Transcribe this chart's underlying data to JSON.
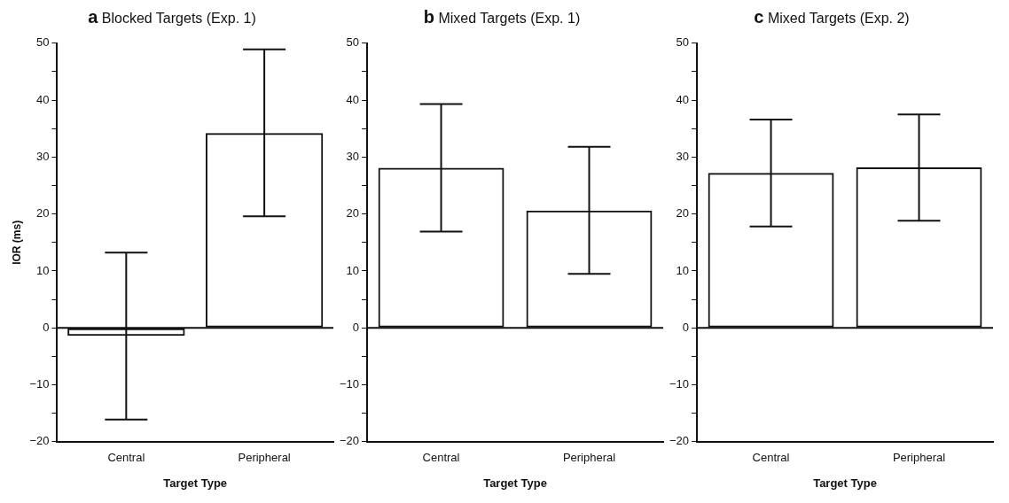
{
  "chart_data": [
    {
      "type": "bar",
      "title": "a Blocked Targets (Exp. 1)",
      "xlabel": "Target Type",
      "ylabel": "IOR (ms)",
      "categories": [
        "Central",
        "Peripheral"
      ],
      "values": [
        -1.4,
        34.2
      ],
      "errors": [
        [
          -16.1,
          13.2
        ],
        [
          19.6,
          48.9
        ]
      ],
      "color": "#111111",
      "ylim": [
        -20,
        50
      ],
      "yticks": [
        -20,
        {
          "value": -15,
          "label": null
        },
        -10,
        {
          "value": -5,
          "label": null
        },
        0,
        {
          "value": 5,
          "label": null
        },
        10,
        {
          "value": 15,
          "label": null
        },
        20,
        {
          "value": 25,
          "label": null
        },
        30,
        {
          "value": 35,
          "label": null
        },
        40,
        {
          "value": 45,
          "label": null
        },
        50
      ],
      "ref_lines": [
        {
          "axis": "y",
          "value": 0,
          "label": null
        }
      ]
    },
    {
      "type": "bar",
      "title": "b Mixed Targets (Exp. 1)",
      "xlabel": "Target Type",
      "categories": [
        "Central",
        "Peripheral"
      ],
      "values": [
        28.1,
        20.6
      ],
      "errors": [
        [
          16.9,
          39.3
        ],
        [
          9.5,
          31.8
        ]
      ],
      "color": "#111111",
      "ylim": [
        -20,
        50
      ],
      "yticks": [
        -20,
        {
          "value": -15,
          "label": null
        },
        -10,
        {
          "value": -5,
          "label": null
        },
        0,
        {
          "value": 5,
          "label": null
        },
        10,
        {
          "value": 15,
          "label": null
        },
        20,
        {
          "value": 25,
          "label": null
        },
        30,
        {
          "value": 35,
          "label": null
        },
        40,
        {
          "value": 45,
          "label": null
        },
        50
      ],
      "ref_lines": [
        {
          "axis": "y",
          "value": 0,
          "label": null
        }
      ]
    },
    {
      "type": "bar",
      "title": "c Mixed Targets (Exp. 2)",
      "xlabel": "Target Type",
      "categories": [
        "Central",
        "Peripheral"
      ],
      "values": [
        27.2,
        28.2
      ],
      "errors": [
        [
          17.8,
          36.6
        ],
        [
          18.8,
          37.5
        ]
      ],
      "color": "#111111",
      "ylim": [
        -20,
        50
      ],
      "yticks": [
        -20,
        {
          "value": -15,
          "label": null
        },
        -10,
        {
          "value": -5,
          "label": null
        },
        0,
        {
          "value": 5,
          "label": null
        },
        10,
        {
          "value": 15,
          "label": null
        },
        20,
        {
          "value": 25,
          "label": null
        },
        30,
        {
          "value": 35,
          "label": null
        },
        40,
        {
          "value": 45,
          "label": null
        },
        50
      ],
      "ref_lines": [
        {
          "axis": "y",
          "value": 0,
          "label": null
        }
      ]
    }
  ]
}
